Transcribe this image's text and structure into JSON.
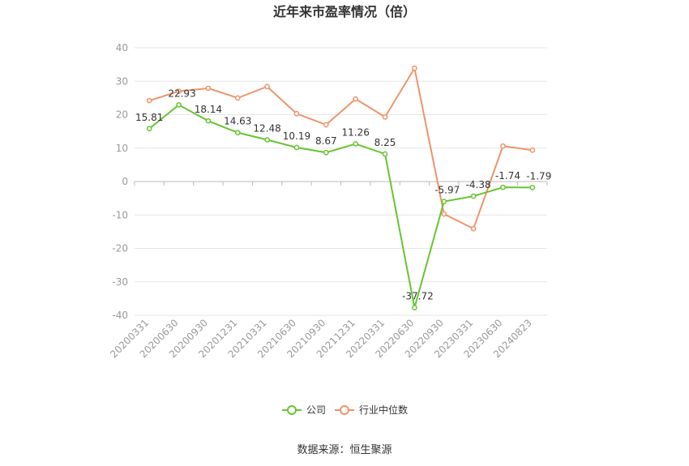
{
  "chart_data": {
    "type": "line",
    "title": "近年来市盈率情况（倍）",
    "categories": [
      "20200331",
      "20200630",
      "20200930",
      "20201231",
      "20210331",
      "20210630",
      "20210930",
      "20211231",
      "20220331",
      "20220630",
      "20220930",
      "20230331",
      "20230630",
      "20240823"
    ],
    "ylim": [
      -40,
      40
    ],
    "yticks": [
      40,
      30,
      20,
      10,
      0,
      -10,
      -20,
      -30,
      -40
    ],
    "grid": true,
    "legend_position": "bottom",
    "series": [
      {
        "name": "公司",
        "color": "#66c52f",
        "values": [
          15.81,
          22.93,
          18.14,
          14.63,
          12.48,
          10.19,
          8.67,
          11.26,
          8.25,
          -37.72,
          -5.97,
          -4.38,
          -1.74,
          -1.79
        ],
        "labels": [
          "15.81",
          "22.93",
          "18.14",
          "14.63",
          "12.48",
          "10.19",
          "8.67",
          "11.26",
          "8.25",
          "-37.72",
          "-5.97",
          "-4.38",
          "-1.74",
          "-1.79"
        ]
      },
      {
        "name": "行业中位数",
        "color": "#f0936a",
        "values": [
          24.2,
          27.0,
          27.9,
          25.0,
          28.4,
          20.3,
          17.0,
          24.7,
          19.3,
          33.9,
          -9.7,
          -14.1,
          10.6,
          9.4
        ]
      }
    ],
    "source": "数据来源：恒生聚源"
  }
}
